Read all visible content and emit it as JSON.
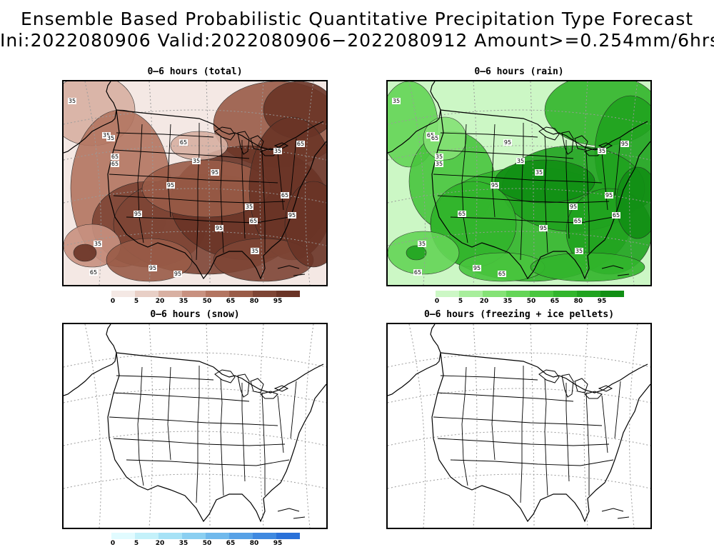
{
  "header": {
    "line1": "Ensemble Based Probabilistic Quantitative Precipitation Type Forecast",
    "line2": "Ini:2022080906 Valid:2022080906−2022080912 Amount>=0.254mm/6hrs"
  },
  "panels": [
    {
      "title": "0–6 hours (total)",
      "colorbar": "brown"
    },
    {
      "title": "0–6 hours (rain)",
      "colorbar": "green"
    },
    {
      "title": "0–6 hours (snow)",
      "colorbar": "blue"
    },
    {
      "title": "0–6 hours (freezing + ice pellets)",
      "colorbar": "none"
    }
  ],
  "colorbars": {
    "ticks": [
      "0",
      "5",
      "20",
      "35",
      "50",
      "65",
      "80",
      "95"
    ],
    "brown": [
      "#f4e8e4",
      "#e8cfc6",
      "#d8b0a2",
      "#c89180",
      "#b37561",
      "#9a5c48",
      "#7e4535",
      "#6a3426"
    ],
    "green": [
      "#ccf7c5",
      "#a8ee9c",
      "#85e276",
      "#64d557",
      "#49c63e",
      "#32b52c",
      "#20a31f",
      "#118f14"
    ],
    "blue": [
      "#e1fbff",
      "#c4f1fa",
      "#a7e2f6",
      "#8bcff1",
      "#70b9ec",
      "#57a1e6",
      "#3f89e0",
      "#2a71d9"
    ]
  },
  "contour_labels": {
    "total": [
      "35",
      "35",
      "65",
      "35",
      "65",
      "95",
      "35",
      "65",
      "95",
      "35",
      "95",
      "65",
      "95",
      "35",
      "95",
      "65",
      "35",
      "95",
      "95",
      "65",
      "35",
      "65"
    ],
    "rain": [
      "35",
      "65",
      "35",
      "65",
      "35",
      "95",
      "35",
      "95",
      "35",
      "95",
      "65",
      "65",
      "95",
      "35",
      "65",
      "95",
      "35",
      "65",
      "95",
      "65",
      "35",
      "95"
    ]
  }
}
